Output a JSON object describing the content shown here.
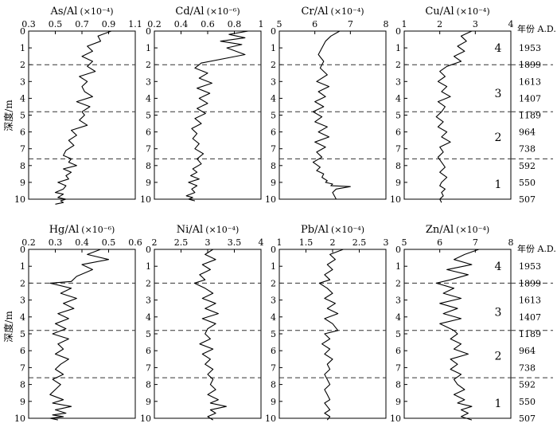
{
  "figure": {
    "y_axis_label": "深度/m",
    "age_column_label": "年份 A.D.",
    "age_labels": [
      {
        "depth": 1,
        "year": "1953"
      },
      {
        "depth": 2,
        "year": "1899"
      },
      {
        "depth": 3,
        "year": "1613"
      },
      {
        "depth": 4,
        "year": "1407"
      },
      {
        "depth": 5,
        "year": "1189"
      },
      {
        "depth": 6,
        "year": "964"
      },
      {
        "depth": 7,
        "year": "738"
      },
      {
        "depth": 8,
        "year": "592"
      },
      {
        "depth": 9,
        "year": "550"
      },
      {
        "depth": 10,
        "year": "507"
      }
    ],
    "zones": [
      {
        "label": "4",
        "depth": 1.0
      },
      {
        "label": "3",
        "depth": 3.7
      },
      {
        "label": "2",
        "depth": 6.3
      },
      {
        "label": "1",
        "depth": 9.1
      }
    ],
    "zone_boundaries": [
      2.0,
      4.8,
      7.6
    ],
    "colors": {
      "line": "#000000",
      "dashed": "#333333"
    }
  },
  "chart_data": [
    {
      "type": "line",
      "title": "As/Al",
      "unit": "(×10⁻⁴)",
      "xlim": [
        0.3,
        1.1
      ],
      "xticks": [
        "0.3",
        "0.5",
        "0.7",
        "0.9",
        "1.1"
      ],
      "ylim": [
        0,
        10
      ],
      "yticks": [
        "0",
        "1",
        "2",
        "3",
        "4",
        "5",
        "6",
        "7",
        "8",
        "9",
        "10"
      ],
      "x": [
        0.92,
        0.82,
        0.84,
        0.74,
        0.78,
        0.7,
        0.78,
        0.74,
        0.8,
        0.68,
        0.74,
        0.7,
        0.72,
        0.78,
        0.66,
        0.76,
        0.7,
        0.72,
        0.68,
        0.74,
        0.62,
        0.66,
        0.6,
        0.64,
        0.58,
        0.56,
        0.62,
        0.6,
        0.66,
        0.56,
        0.62,
        0.58,
        0.6,
        0.52,
        0.58,
        0.56,
        0.5,
        0.56,
        0.54,
        0.52,
        0.58,
        0.54,
        0.56,
        0.5
      ],
      "y": [
        0,
        0.3,
        0.6,
        0.9,
        1.2,
        1.5,
        1.8,
        2.1,
        2.4,
        2.7,
        3.0,
        3.3,
        3.6,
        3.9,
        4.2,
        4.5,
        4.8,
        5.0,
        5.3,
        5.6,
        5.9,
        6.2,
        6.5,
        6.8,
        7.1,
        7.4,
        7.6,
        7.8,
        8.0,
        8.2,
        8.4,
        8.6,
        8.8,
        9.0,
        9.2,
        9.4,
        9.6,
        9.7,
        9.8,
        9.9,
        10.0,
        10.1,
        10.2,
        10.3
      ]
    },
    {
      "type": "line",
      "title": "Cd/Al",
      "unit": "(×10⁻⁶)",
      "xlim": [
        0.2,
        1.2
      ],
      "xticks": [
        "0.2",
        "0.4",
        "0.6",
        "0.8",
        "1"
      ],
      "ylim": [
        0,
        10
      ],
      "yticks": [
        "0",
        "1",
        "2",
        "3",
        "4",
        "5",
        "6",
        "7",
        "8",
        "9",
        "10"
      ],
      "x": [
        1.08,
        0.9,
        1.05,
        0.82,
        1.02,
        0.88,
        1.05,
        0.64,
        0.58,
        0.7,
        0.62,
        0.74,
        0.6,
        0.72,
        0.62,
        0.7,
        0.6,
        0.68,
        0.58,
        0.64,
        0.55,
        0.6,
        0.56,
        0.62,
        0.58,
        0.66,
        0.6,
        0.64,
        0.56,
        0.6,
        0.54,
        0.62,
        0.52,
        0.6,
        0.55,
        0.58,
        0.5,
        0.56,
        0.52,
        0.58
      ],
      "y": [
        0,
        0.2,
        0.4,
        0.6,
        0.8,
        1.0,
        1.4,
        1.9,
        2.2,
        2.5,
        2.8,
        3.1,
        3.4,
        3.7,
        4.0,
        4.3,
        4.6,
        4.9,
        5.2,
        5.5,
        5.8,
        6.1,
        6.4,
        6.7,
        7.0,
        7.3,
        7.6,
        7.9,
        8.2,
        8.4,
        8.6,
        8.8,
        9.0,
        9.2,
        9.4,
        9.6,
        9.8,
        9.9,
        10.0,
        10.1
      ]
    },
    {
      "type": "line",
      "title": "Cr/Al",
      "unit": "(×10⁻⁴)",
      "xlim": [
        5,
        8
      ],
      "xticks": [
        "5",
        "6",
        "7",
        "8"
      ],
      "ylim": [
        0,
        10
      ],
      "yticks": [
        "0",
        "1",
        "2",
        "3",
        "4",
        "5",
        "6",
        "7",
        "8",
        "9",
        "10"
      ],
      "x": [
        6.7,
        6.45,
        6.3,
        6.2,
        6.1,
        6.25,
        6.15,
        6.35,
        6.05,
        6.4,
        6.1,
        6.3,
        6.0,
        6.25,
        5.95,
        6.2,
        6.0,
        6.35,
        6.1,
        6.4,
        6.0,
        6.3,
        6.05,
        6.2,
        5.95,
        6.15,
        6.05,
        6.25,
        6.2,
        6.35,
        6.3,
        6.5,
        6.45,
        7.0,
        6.6,
        6.5,
        6.55,
        6.6
      ],
      "y": [
        0,
        0.3,
        0.6,
        1.0,
        1.4,
        1.8,
        2.2,
        2.6,
        3.0,
        3.3,
        3.6,
        3.9,
        4.2,
        4.5,
        4.8,
        5.1,
        5.4,
        5.7,
        6.0,
        6.3,
        6.6,
        6.9,
        7.2,
        7.5,
        7.8,
        8.1,
        8.3,
        8.5,
        8.7,
        8.9,
        9.0,
        9.1,
        9.2,
        9.25,
        9.4,
        9.6,
        9.8,
        10.0
      ]
    },
    {
      "type": "line",
      "title": "Cu/Al",
      "unit": "(×10⁻⁴)",
      "xlim": [
        1,
        4
      ],
      "xticks": [
        "1",
        "2",
        "3",
        "4"
      ],
      "ylim": [
        0,
        10
      ],
      "yticks": [
        "0",
        "1",
        "2",
        "3",
        "4",
        "5",
        "6",
        "7",
        "8",
        "9",
        "10"
      ],
      "x": [
        2.9,
        2.6,
        2.75,
        2.5,
        2.7,
        2.4,
        2.6,
        2.2,
        2.0,
        2.15,
        1.95,
        2.2,
        2.05,
        2.3,
        1.95,
        2.15,
        2.05,
        1.9,
        2.1,
        1.95,
        2.2,
        2.05,
        2.3,
        2.0,
        2.1,
        1.95,
        2.05,
        2.15,
        2.0,
        2.2,
        2.05,
        2.0,
        2.15,
        2.05,
        2.1,
        2.0,
        2.05
      ],
      "y": [
        0,
        0.3,
        0.6,
        0.9,
        1.2,
        1.5,
        1.8,
        2.1,
        2.4,
        2.7,
        3.0,
        3.3,
        3.6,
        3.9,
        4.2,
        4.5,
        4.8,
        5.1,
        5.4,
        5.7,
        6.0,
        6.3,
        6.6,
        6.9,
        7.2,
        7.5,
        7.8,
        8.1,
        8.4,
        8.7,
        9.0,
        9.2,
        9.4,
        9.6,
        9.8,
        10.0,
        10.2
      ]
    },
    {
      "type": "line",
      "title": "Hg/Al",
      "unit": "(×10⁻⁶)",
      "xlim": [
        0.2,
        0.6
      ],
      "xticks": [
        "0.2",
        "0.3",
        "0.4",
        "0.5",
        "0.6"
      ],
      "ylim": [
        0,
        10
      ],
      "yticks": [
        "0",
        "1",
        "2",
        "3",
        "4",
        "5",
        "6",
        "7",
        "8",
        "9",
        "10"
      ],
      "x": [
        0.47,
        0.42,
        0.5,
        0.4,
        0.44,
        0.38,
        0.36,
        0.28,
        0.36,
        0.32,
        0.38,
        0.33,
        0.37,
        0.31,
        0.35,
        0.3,
        0.34,
        0.29,
        0.35,
        0.31,
        0.33,
        0.3,
        0.35,
        0.32,
        0.3,
        0.33,
        0.29,
        0.32,
        0.3,
        0.28,
        0.33,
        0.29,
        0.36,
        0.3,
        0.34,
        0.29,
        0.33,
        0.28,
        0.31
      ],
      "y": [
        0,
        0.3,
        0.6,
        0.9,
        1.2,
        1.6,
        1.9,
        2.0,
        2.3,
        2.6,
        2.9,
        3.2,
        3.5,
        3.8,
        4.1,
        4.4,
        4.7,
        5.0,
        5.3,
        5.6,
        5.9,
        6.2,
        6.5,
        6.8,
        7.1,
        7.4,
        7.7,
        8.0,
        8.3,
        8.6,
        8.9,
        9.1,
        9.3,
        9.5,
        9.7,
        9.8,
        9.9,
        10.0,
        10.1
      ]
    },
    {
      "type": "line",
      "title": "Ni/Al",
      "unit": "(×10⁻⁴)",
      "xlim": [
        2,
        4
      ],
      "xticks": [
        "2",
        "2.5",
        "3",
        "3.5",
        "4"
      ],
      "ylim": [
        0,
        10
      ],
      "yticks": [
        "0",
        "1",
        "2",
        "3",
        "4",
        "5",
        "6",
        "7",
        "8",
        "9",
        "10"
      ],
      "x": [
        3.1,
        2.95,
        3.15,
        2.9,
        3.05,
        2.85,
        2.95,
        2.75,
        2.95,
        3.1,
        2.9,
        3.15,
        2.95,
        3.2,
        2.9,
        3.15,
        3.0,
        2.95,
        3.05,
        2.85,
        3.1,
        2.9,
        3.05,
        2.95,
        3.1,
        3.0,
        3.1,
        3.05,
        3.15,
        3.0,
        3.2,
        3.05,
        3.35,
        3.05,
        3.15,
        3.0,
        3.1
      ],
      "y": [
        0,
        0.3,
        0.6,
        0.9,
        1.2,
        1.5,
        1.8,
        2.0,
        2.3,
        2.6,
        2.9,
        3.2,
        3.5,
        3.8,
        4.1,
        4.4,
        4.7,
        5.0,
        5.3,
        5.6,
        5.9,
        6.2,
        6.5,
        6.8,
        7.1,
        7.4,
        7.7,
        8.0,
        8.3,
        8.6,
        8.9,
        9.1,
        9.3,
        9.5,
        9.7,
        9.9,
        10.1
      ]
    },
    {
      "type": "line",
      "title": "Pb/Al",
      "unit": "(×10⁻⁴)",
      "xlim": [
        1,
        3
      ],
      "xticks": [
        "1",
        "1.5",
        "2",
        "2.5",
        "3"
      ],
      "ylim": [
        0,
        10
      ],
      "yticks": [
        "0",
        "1",
        "2",
        "3",
        "4",
        "5",
        "6",
        "7",
        "8",
        "9",
        "10"
      ],
      "x": [
        2.2,
        1.95,
        2.05,
        1.9,
        2.0,
        1.85,
        1.95,
        1.75,
        1.9,
        2.0,
        1.85,
        2.05,
        1.9,
        2.1,
        1.85,
        2.0,
        2.1,
        1.85,
        1.95,
        1.8,
        1.95,
        1.85,
        2.0,
        1.9,
        1.95,
        1.85,
        1.9,
        1.95,
        1.85,
        1.9,
        1.95,
        1.85,
        1.9,
        1.95,
        1.85,
        1.95,
        1.9
      ],
      "y": [
        0,
        0.3,
        0.6,
        0.9,
        1.2,
        1.5,
        1.8,
        2.0,
        2.3,
        2.6,
        2.9,
        3.2,
        3.5,
        3.8,
        4.1,
        4.4,
        4.8,
        5.0,
        5.3,
        5.6,
        5.9,
        6.2,
        6.5,
        6.8,
        7.1,
        7.4,
        7.7,
        8.0,
        8.3,
        8.6,
        8.9,
        9.1,
        9.3,
        9.5,
        9.7,
        9.9,
        10.1
      ]
    },
    {
      "type": "line",
      "title": "Zn/Al",
      "unit": "(×10⁻⁴)",
      "xlim": [
        5,
        8
      ],
      "xticks": [
        "5",
        "6",
        "7",
        "8"
      ],
      "ylim": [
        0,
        10
      ],
      "yticks": [
        "0",
        "1",
        "2",
        "3",
        "4",
        "5",
        "6",
        "7",
        "8",
        "9",
        "10"
      ],
      "x": [
        7.1,
        6.7,
        6.4,
        6.9,
        6.2,
        6.8,
        6.3,
        5.9,
        6.4,
        6.1,
        6.6,
        6.0,
        6.5,
        6.1,
        6.6,
        6.0,
        6.4,
        6.5,
        6.3,
        6.6,
        6.4,
        6.8,
        6.3,
        6.5,
        6.3,
        6.6,
        6.4,
        6.5,
        6.7,
        6.4,
        6.7,
        6.5,
        6.9,
        6.6,
        6.8,
        6.6,
        6.9
      ],
      "y": [
        0,
        0.3,
        0.6,
        0.9,
        1.2,
        1.5,
        1.8,
        2.0,
        2.3,
        2.6,
        2.9,
        3.2,
        3.5,
        3.8,
        4.1,
        4.4,
        4.8,
        5.0,
        5.3,
        5.6,
        5.9,
        6.2,
        6.5,
        6.8,
        7.1,
        7.4,
        7.7,
        8.0,
        8.3,
        8.6,
        8.9,
        9.1,
        9.3,
        9.5,
        9.7,
        9.9,
        10.1
      ]
    }
  ]
}
